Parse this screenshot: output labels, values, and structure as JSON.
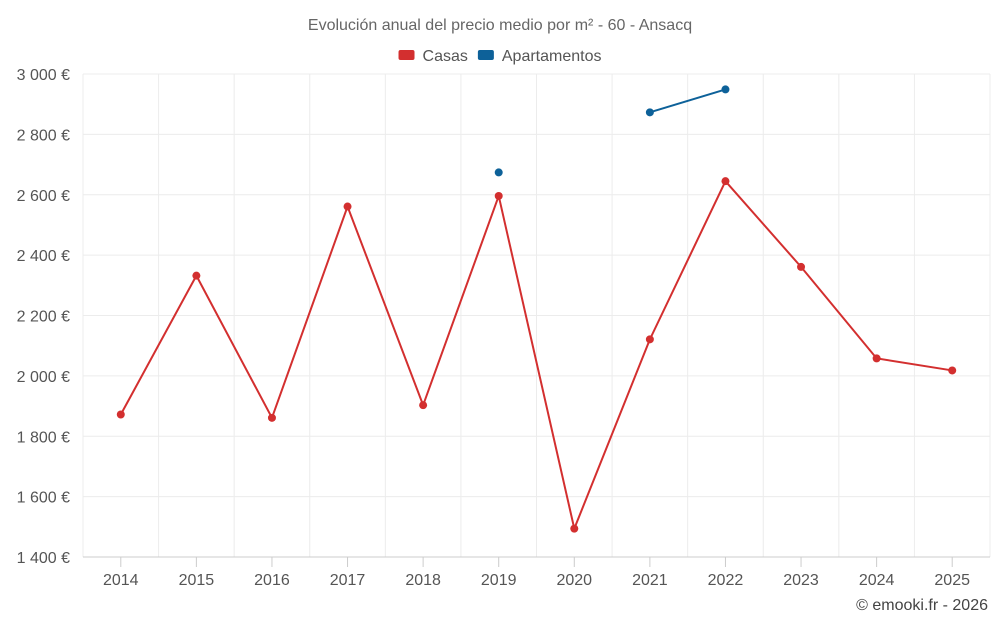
{
  "chart_data": {
    "type": "line",
    "title": "Evolución anual del precio medio por m² - 60 - Ansacq",
    "categories": [
      "2014",
      "2015",
      "2016",
      "2017",
      "2018",
      "2019",
      "2020",
      "2021",
      "2022",
      "2023",
      "2024",
      "2025"
    ],
    "series": [
      {
        "name": "Casas",
        "color": "#d32f2f",
        "values": [
          1872,
          2332,
          1861,
          2561,
          1903,
          2596,
          1494,
          2121,
          2645,
          2361,
          2058,
          2018
        ]
      },
      {
        "name": "Apartamentos",
        "color": "#0d6199",
        "values": [
          null,
          null,
          null,
          null,
          null,
          2674,
          null,
          2873,
          2949,
          null,
          null,
          null
        ]
      }
    ],
    "ylim": [
      1400,
      3000
    ],
    "yticks": [
      1400,
      1600,
      1800,
      2000,
      2200,
      2400,
      2600,
      2800,
      3000
    ],
    "ytick_labels": [
      "1 400 €",
      "1 600 €",
      "1 800 €",
      "2 000 €",
      "2 200 €",
      "2 400 €",
      "2 600 €",
      "2 800 €",
      "3 000 €"
    ],
    "xlabel": "",
    "ylabel": "",
    "grid": true,
    "legend_position": "top-center"
  },
  "credit": "© emooki.fr - 2026"
}
